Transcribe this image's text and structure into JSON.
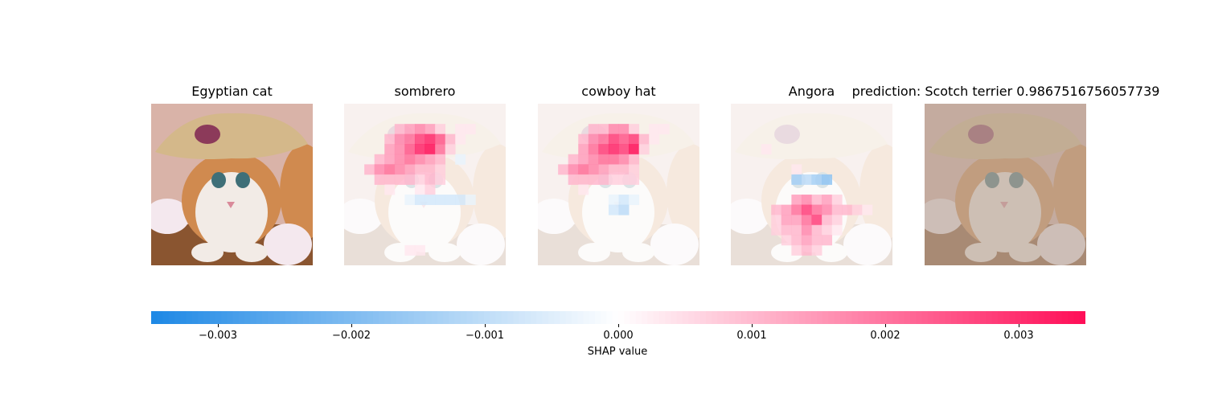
{
  "chart_data": {
    "type": "heatmap",
    "original": {
      "title": "Egyptian cat"
    },
    "explanations": [
      {
        "title": "sombrero",
        "grid": [
          [
            0,
            0,
            0,
            0,
            0,
            0,
            0,
            0,
            0,
            0,
            0,
            0,
            0,
            0,
            0,
            0
          ],
          [
            0,
            0,
            0,
            0,
            0,
            0,
            0,
            0,
            0,
            0,
            0,
            0,
            0,
            0,
            0,
            0
          ],
          [
            0,
            0,
            0,
            0,
            0,
            0.3,
            0.4,
            0.5,
            0.4,
            0.2,
            0,
            0.1,
            0.1,
            0,
            0,
            0
          ],
          [
            0,
            0,
            0,
            0,
            0.3,
            0.5,
            0.6,
            0.8,
            0.9,
            0.7,
            0.3,
            0.1,
            0,
            0,
            0,
            0
          ],
          [
            0,
            0,
            0,
            0,
            0.4,
            0.5,
            0.7,
            0.9,
            1.0,
            0.6,
            0.2,
            0,
            0,
            0,
            0,
            0
          ],
          [
            0,
            0,
            0,
            0.3,
            0.4,
            0.5,
            0.6,
            0.5,
            0.4,
            0.3,
            0,
            -0.1,
            0,
            0,
            0,
            0
          ],
          [
            0,
            0,
            0.3,
            0.5,
            0.6,
            0.5,
            0.4,
            0.3,
            0.3,
            0.2,
            0,
            0,
            0,
            0,
            0,
            0
          ],
          [
            0,
            0,
            0,
            0.3,
            0.3,
            0.3,
            0.3,
            0.2,
            0.3,
            0.2,
            0,
            0,
            0,
            0,
            0,
            0
          ],
          [
            0,
            0,
            0,
            0,
            0.1,
            0,
            0,
            0.1,
            0.2,
            0,
            0,
            0,
            0,
            0,
            0,
            0
          ],
          [
            0,
            0,
            0,
            0,
            0,
            0,
            -0.1,
            -0.2,
            -0.2,
            -0.2,
            -0.2,
            -0.2,
            -0.1,
            0,
            0,
            0
          ],
          [
            0,
            0,
            0,
            0,
            0,
            0,
            0,
            0,
            0,
            0,
            0,
            0,
            0,
            0,
            0,
            0
          ],
          [
            0,
            0,
            0,
            0,
            0,
            0,
            0,
            0,
            0,
            0,
            0,
            0,
            0,
            0,
            0,
            0
          ],
          [
            0,
            0,
            0,
            0,
            0,
            0,
            0,
            0,
            0,
            0,
            0,
            0,
            0,
            0,
            0,
            0
          ],
          [
            0,
            0,
            0,
            0,
            0,
            0,
            0,
            0,
            0,
            0,
            0,
            0,
            0,
            0,
            0,
            0
          ],
          [
            0,
            0,
            0,
            0,
            0,
            0,
            0.1,
            0.1,
            0,
            0,
            0,
            0,
            0,
            0,
            0,
            0
          ],
          [
            0,
            0,
            0,
            0,
            0,
            0,
            0,
            0,
            0,
            0,
            0,
            0,
            0,
            0,
            0,
            0
          ]
        ]
      },
      {
        "title": "cowboy hat",
        "grid": [
          [
            0,
            0,
            0,
            0,
            0,
            0,
            0,
            0,
            0,
            0,
            0,
            0,
            0,
            0,
            0,
            0
          ],
          [
            0,
            0,
            0,
            0,
            0,
            0,
            0,
            0,
            0,
            0,
            0,
            0,
            0,
            0,
            0,
            0
          ],
          [
            0,
            0,
            0,
            0,
            0,
            0.3,
            0.3,
            0.5,
            0.5,
            0.2,
            0,
            0.1,
            0.1,
            0,
            0,
            0
          ],
          [
            0,
            0,
            0,
            0,
            0.3,
            0.5,
            0.6,
            0.8,
            0.7,
            0.8,
            0.3,
            0.1,
            0,
            0,
            0,
            0
          ],
          [
            0,
            0,
            0,
            0,
            0.4,
            0.6,
            0.8,
            0.9,
            0.8,
            1.0,
            0.2,
            0,
            0,
            0,
            0,
            0
          ],
          [
            0,
            0,
            0,
            0.3,
            0.4,
            0.5,
            0.6,
            0.6,
            0.5,
            0.3,
            0,
            0,
            0,
            0,
            0,
            0
          ],
          [
            0,
            0,
            0.3,
            0.5,
            0.6,
            0.5,
            0.4,
            0.3,
            0.3,
            0.2,
            0,
            0,
            0,
            0,
            0,
            0
          ],
          [
            0,
            0,
            0,
            0.3,
            0.3,
            0.3,
            0.3,
            0.2,
            0.2,
            0.2,
            0,
            0,
            0,
            0,
            0,
            0
          ],
          [
            0,
            0,
            0,
            0,
            0.1,
            0,
            0,
            0,
            0,
            0,
            0,
            0,
            0,
            0,
            0,
            0
          ],
          [
            0,
            0,
            0,
            0,
            0,
            0,
            0,
            -0.1,
            -0.2,
            -0.1,
            0,
            0,
            0,
            0,
            0,
            0
          ],
          [
            0,
            0,
            0,
            0,
            0,
            0,
            0,
            -0.2,
            -0.3,
            0,
            0,
            0,
            0,
            0,
            0,
            0
          ],
          [
            0,
            0,
            0,
            0,
            0,
            0,
            0,
            0,
            0,
            0,
            0,
            0,
            0,
            0,
            0,
            0
          ],
          [
            0,
            0,
            0,
            0,
            0,
            0,
            0,
            0,
            0,
            0,
            0,
            0,
            0,
            0,
            0,
            0
          ],
          [
            0,
            0,
            0,
            0,
            0,
            0,
            0,
            0,
            0,
            0,
            0,
            0,
            0,
            0,
            0,
            0
          ],
          [
            0,
            0,
            0,
            0,
            0,
            0,
            0,
            0,
            0,
            0,
            0,
            0,
            0,
            0,
            0,
            0
          ],
          [
            0,
            0,
            0,
            0,
            0,
            0,
            0,
            0,
            0,
            0,
            0,
            0,
            0,
            0,
            0,
            0
          ]
        ]
      },
      {
        "title": "Angora",
        "grid": [
          [
            0,
            0,
            0,
            0,
            0,
            0,
            0,
            0,
            0,
            0,
            0,
            0,
            0,
            0,
            0,
            0
          ],
          [
            0,
            0,
            0,
            0,
            0,
            0,
            0,
            0,
            0,
            0,
            0,
            0,
            0,
            0,
            0,
            0
          ],
          [
            0,
            0,
            0,
            0,
            0,
            0,
            0,
            0,
            0,
            0,
            0,
            0,
            0,
            0,
            0,
            0
          ],
          [
            0,
            0,
            0,
            0,
            0,
            0,
            0,
            0,
            0,
            0,
            0,
            0,
            0,
            0,
            0,
            0
          ],
          [
            0,
            0,
            0,
            0.1,
            0,
            0,
            0,
            0,
            0,
            0,
            0,
            0,
            0,
            0,
            0,
            0
          ],
          [
            0,
            0,
            0,
            0,
            0,
            0,
            0,
            0,
            0,
            0,
            0,
            0,
            0,
            0,
            0,
            0
          ],
          [
            0,
            0,
            0,
            0,
            0,
            0,
            0.1,
            0,
            0,
            0,
            0,
            0,
            0,
            0,
            0,
            0
          ],
          [
            0,
            0,
            0,
            0,
            0,
            0,
            -0.4,
            -0.3,
            -0.4,
            -0.5,
            0,
            0,
            0,
            0,
            0,
            0
          ],
          [
            0,
            0,
            0,
            0,
            0,
            0,
            0,
            0,
            0,
            0,
            0,
            0,
            0,
            0,
            0,
            0
          ],
          [
            0,
            0,
            0,
            0,
            0,
            0,
            0.4,
            0.5,
            0.3,
            0.4,
            0.2,
            0,
            0,
            0,
            0,
            0
          ],
          [
            0,
            0,
            0,
            0,
            0.3,
            0.4,
            0.6,
            0.8,
            0.6,
            0.5,
            0.3,
            0.3,
            0.2,
            0.1,
            0,
            0
          ],
          [
            0,
            0,
            0,
            0,
            0.2,
            0.4,
            0.4,
            0.6,
            0.8,
            0.3,
            0.2,
            0,
            0,
            0,
            0,
            0
          ],
          [
            0,
            0,
            0,
            0,
            0.2,
            0.3,
            0.3,
            0.5,
            0.3,
            0.2,
            0.1,
            0,
            0,
            0,
            0,
            0
          ],
          [
            0,
            0,
            0,
            0,
            0,
            0.2,
            0.3,
            0.4,
            0.3,
            0.3,
            0,
            0,
            0,
            0,
            0,
            0
          ],
          [
            0,
            0,
            0,
            0,
            0,
            0,
            0.2,
            0.3,
            0.2,
            0,
            0,
            0,
            0,
            0,
            0,
            0
          ],
          [
            0,
            0,
            0,
            0,
            0,
            0,
            0,
            0,
            0,
            0,
            0,
            0,
            0,
            0,
            0,
            0
          ]
        ]
      }
    ],
    "prediction_title": "prediction: Scotch terrier 0.9867516756057739",
    "colorbar": {
      "label": "SHAP value",
      "range": [
        -0.0035,
        0.0035
      ],
      "ticks": [
        -0.003,
        -0.002,
        -0.001,
        0.0,
        0.001,
        0.002,
        0.003
      ],
      "tick_labels": [
        "−0.003",
        "−0.002",
        "−0.001",
        "0.000",
        "0.001",
        "0.002",
        "0.003"
      ],
      "negative_color": "#1E88E5",
      "positive_color": "#FF0D57"
    }
  },
  "image_colors": {
    "background_top": "#d9b3a8",
    "background_bottom": "#c98a6a",
    "kitten_fur": "#f2ebe6",
    "kitten_orange": "#d08a4f",
    "hat": "#d4b88a",
    "hat_band_flower": "#8c3a5a",
    "eye": "#3f6f78",
    "flower": "#f4e8ee",
    "basket": "#8a5530",
    "prediction_tint": "#b8a89a"
  }
}
